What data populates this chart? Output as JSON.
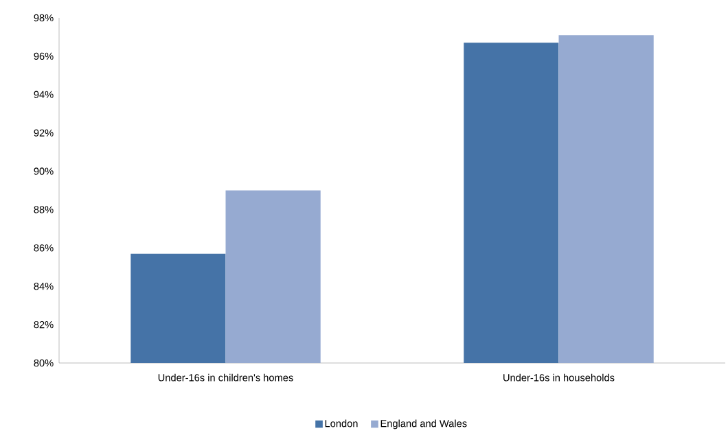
{
  "chart_data": {
    "type": "bar",
    "categories": [
      "Under-16s in children's homes",
      "Under-16s in households"
    ],
    "series": [
      {
        "name": "London",
        "color": "#4573a7",
        "values": [
          85.7,
          96.7
        ]
      },
      {
        "name": "England and Wales",
        "color": "#96aad1",
        "values": [
          89.0,
          97.1
        ]
      }
    ],
    "ylim": [
      80,
      98
    ],
    "yticks": [
      {
        "value": 80,
        "label": "80%"
      },
      {
        "value": 82,
        "label": "82%"
      },
      {
        "value": 84,
        "label": "84%"
      },
      {
        "value": 86,
        "label": "86%"
      },
      {
        "value": 88,
        "label": "88%"
      },
      {
        "value": 90,
        "label": "90%"
      },
      {
        "value": 92,
        "label": "92%"
      },
      {
        "value": 94,
        "label": "94%"
      },
      {
        "value": 96,
        "label": "96%"
      },
      {
        "value": 98,
        "label": "98%"
      }
    ],
    "legend": "bottom"
  }
}
